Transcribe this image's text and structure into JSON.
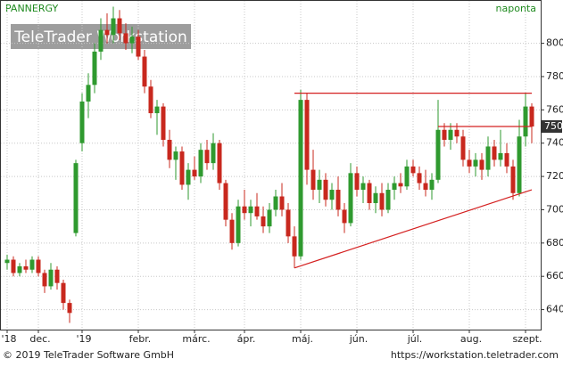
{
  "header": {
    "symbol": "PANNERGY",
    "interval": "naponta",
    "watermark": "TeleTrader Workstation"
  },
  "footer": {
    "copyright": "© 2019 TeleTrader Software GmbH",
    "url": "https://workstation.teletrader.com"
  },
  "chart_data": {
    "type": "candlestick",
    "categories": [
      "'18",
      null,
      null,
      null,
      null,
      "dec.",
      null,
      null,
      null,
      null,
      null,
      null,
      "'19",
      null,
      null,
      null,
      null,
      null,
      null,
      null,
      null,
      "febr.",
      null,
      null,
      null,
      null,
      null,
      null,
      null,
      null,
      "márc.",
      null,
      null,
      null,
      null,
      null,
      null,
      null,
      "ápr.",
      null,
      null,
      null,
      null,
      null,
      null,
      null,
      null,
      "máj.",
      null,
      null,
      null,
      null,
      null,
      null,
      null,
      null,
      "jún.",
      null,
      null,
      null,
      null,
      null,
      null,
      null,
      null,
      "júl.",
      null,
      null,
      null,
      null,
      null,
      null,
      null,
      null,
      "aug.",
      null,
      null,
      null,
      null,
      null,
      null,
      null,
      null,
      "szept.",
      null
    ],
    "open": [
      668,
      670,
      662,
      666,
      664,
      670,
      662,
      654,
      664,
      656,
      644,
      686,
      740,
      765,
      775,
      795,
      808,
      805,
      815,
      806,
      800,
      804,
      792,
      774,
      758,
      762,
      742,
      730,
      735,
      715,
      724,
      720,
      736,
      728,
      740,
      716,
      694,
      680,
      702,
      698,
      702,
      696,
      690,
      700,
      708,
      700,
      684,
      672,
      766,
      724,
      712,
      718,
      706,
      712,
      700,
      692,
      722,
      712,
      716,
      704,
      710,
      700,
      712,
      716,
      714,
      726,
      722,
      716,
      712,
      718,
      748,
      742,
      748,
      744,
      730,
      726,
      730,
      724,
      738,
      730,
      734,
      726,
      710,
      744,
      762
    ],
    "high": [
      673,
      672,
      668,
      670,
      672,
      672,
      664,
      668,
      666,
      658,
      646,
      730,
      770,
      782,
      800,
      815,
      818,
      822,
      820,
      812,
      810,
      808,
      796,
      778,
      766,
      764,
      748,
      738,
      738,
      728,
      732,
      740,
      742,
      746,
      742,
      718,
      698,
      706,
      712,
      706,
      710,
      702,
      704,
      712,
      716,
      704,
      690,
      772,
      770,
      736,
      724,
      722,
      716,
      720,
      704,
      728,
      726,
      720,
      718,
      714,
      716,
      716,
      720,
      722,
      730,
      730,
      726,
      724,
      722,
      766,
      752,
      752,
      752,
      748,
      736,
      734,
      734,
      744,
      742,
      748,
      740,
      730,
      754,
      770,
      764
    ],
    "low": [
      664,
      660,
      660,
      662,
      662,
      660,
      650,
      652,
      652,
      640,
      632,
      684,
      735,
      755,
      770,
      790,
      800,
      800,
      802,
      796,
      794,
      790,
      770,
      755,
      745,
      738,
      725,
      718,
      712,
      706,
      718,
      716,
      724,
      724,
      712,
      690,
      676,
      678,
      694,
      690,
      694,
      686,
      686,
      696,
      696,
      680,
      665,
      670,
      715,
      706,
      704,
      702,
      700,
      696,
      686,
      690,
      708,
      704,
      700,
      698,
      696,
      698,
      706,
      710,
      712,
      720,
      712,
      708,
      706,
      716,
      738,
      736,
      740,
      726,
      722,
      720,
      718,
      720,
      726,
      726,
      722,
      706,
      708,
      738,
      740
    ],
    "close": [
      670,
      662,
      666,
      664,
      670,
      662,
      654,
      664,
      656,
      644,
      638,
      728,
      765,
      775,
      795,
      808,
      805,
      815,
      806,
      800,
      804,
      792,
      774,
      758,
      762,
      742,
      730,
      735,
      715,
      724,
      720,
      736,
      728,
      740,
      716,
      694,
      680,
      702,
      698,
      702,
      696,
      690,
      700,
      708,
      700,
      684,
      672,
      766,
      724,
      712,
      718,
      706,
      712,
      700,
      692,
      722,
      712,
      716,
      704,
      710,
      700,
      712,
      716,
      714,
      726,
      722,
      716,
      712,
      718,
      748,
      742,
      748,
      744,
      730,
      726,
      730,
      724,
      738,
      730,
      734,
      726,
      710,
      744,
      762,
      750
    ],
    "up_color": "#2f9a2f",
    "down_color": "#c8281e",
    "ylim": [
      628,
      826
    ],
    "yticks": [
      640,
      660,
      680,
      700,
      720,
      740,
      760,
      780,
      800
    ],
    "grid": true,
    "axis_side": "right",
    "last_price": 750,
    "trendlines": [
      {
        "from": [
          46,
          770
        ],
        "to": [
          84,
          770
        ],
        "color": "#d42020"
      },
      {
        "from": [
          69,
          750
        ],
        "to": [
          84,
          750
        ],
        "color": "#d42020"
      },
      {
        "from": [
          46,
          665
        ],
        "to": [
          84,
          712
        ],
        "color": "#d42020"
      }
    ]
  }
}
